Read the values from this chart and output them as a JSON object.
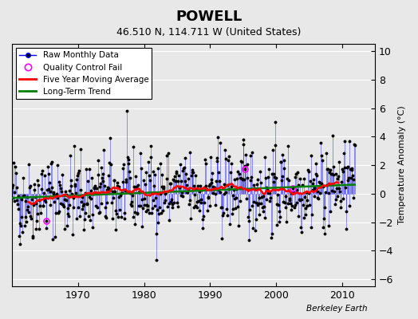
{
  "title": "POWELL",
  "subtitle": "46.510 N, 114.711 W (United States)",
  "ylabel": "Temperature Anomaly (°C)",
  "watermark": "Berkeley Earth",
  "ylim": [
    -6.5,
    10.5
  ],
  "xlim": [
    1960,
    2015
  ],
  "yticks": [
    -6,
    -4,
    -2,
    0,
    2,
    4,
    6,
    8,
    10
  ],
  "xticks": [
    1970,
    1980,
    1990,
    2000,
    2010
  ],
  "bg_color": "#e8e8e8",
  "plot_bg": "#e8e8e8",
  "raw_line_color": "blue",
  "raw_marker_color": "black",
  "qc_color": "magenta",
  "moving_avg_color": "red",
  "trend_color": "green",
  "seed": 42,
  "n_months": 624,
  "start_year": 1960,
  "trend_slope": 0.018,
  "trend_intercept": -0.3
}
